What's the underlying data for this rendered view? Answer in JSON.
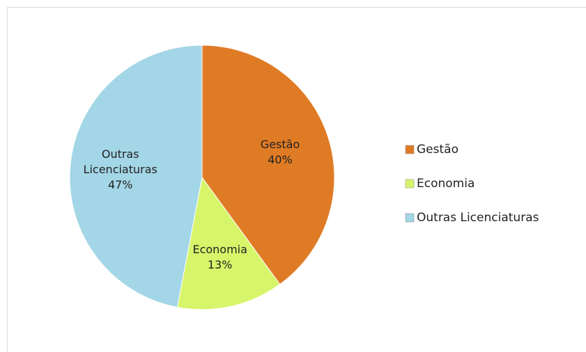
{
  "chart_data": {
    "type": "pie",
    "categories": [
      "Gestão",
      "Economia",
      "Outras Licenciaturas"
    ],
    "values": [
      40,
      13,
      47
    ],
    "value_labels": [
      "40%",
      "13%",
      "47%"
    ],
    "colors": [
      "#e07b25",
      "#d6f56a",
      "#a3d6e6"
    ],
    "legend": "right"
  }
}
